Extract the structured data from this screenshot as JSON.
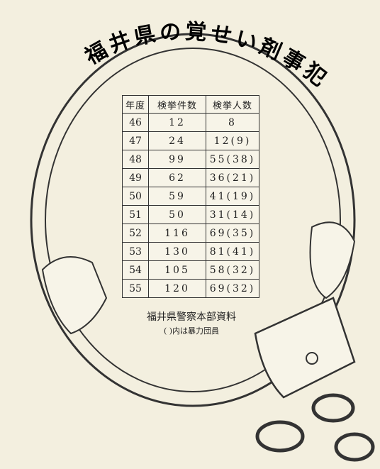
{
  "title": "福井県の覚せい剤事犯",
  "table": {
    "header": [
      "年度",
      "検挙件数",
      "検挙人数"
    ],
    "rows": [
      [
        "46",
        "12",
        "8"
      ],
      [
        "47",
        "24",
        "12(9)"
      ],
      [
        "48",
        "99",
        "55(38)"
      ],
      [
        "49",
        "62",
        "36(21)"
      ],
      [
        "50",
        "59",
        "41(19)"
      ],
      [
        "51",
        "50",
        "31(14)"
      ],
      [
        "52",
        "116",
        "69(35)"
      ],
      [
        "53",
        "130",
        "81(41)"
      ],
      [
        "54",
        "105",
        "58(32)"
      ],
      [
        "55",
        "120",
        "69(32)"
      ]
    ]
  },
  "source": "福井県警察本部資料",
  "note": "( )内は暴力団員"
}
